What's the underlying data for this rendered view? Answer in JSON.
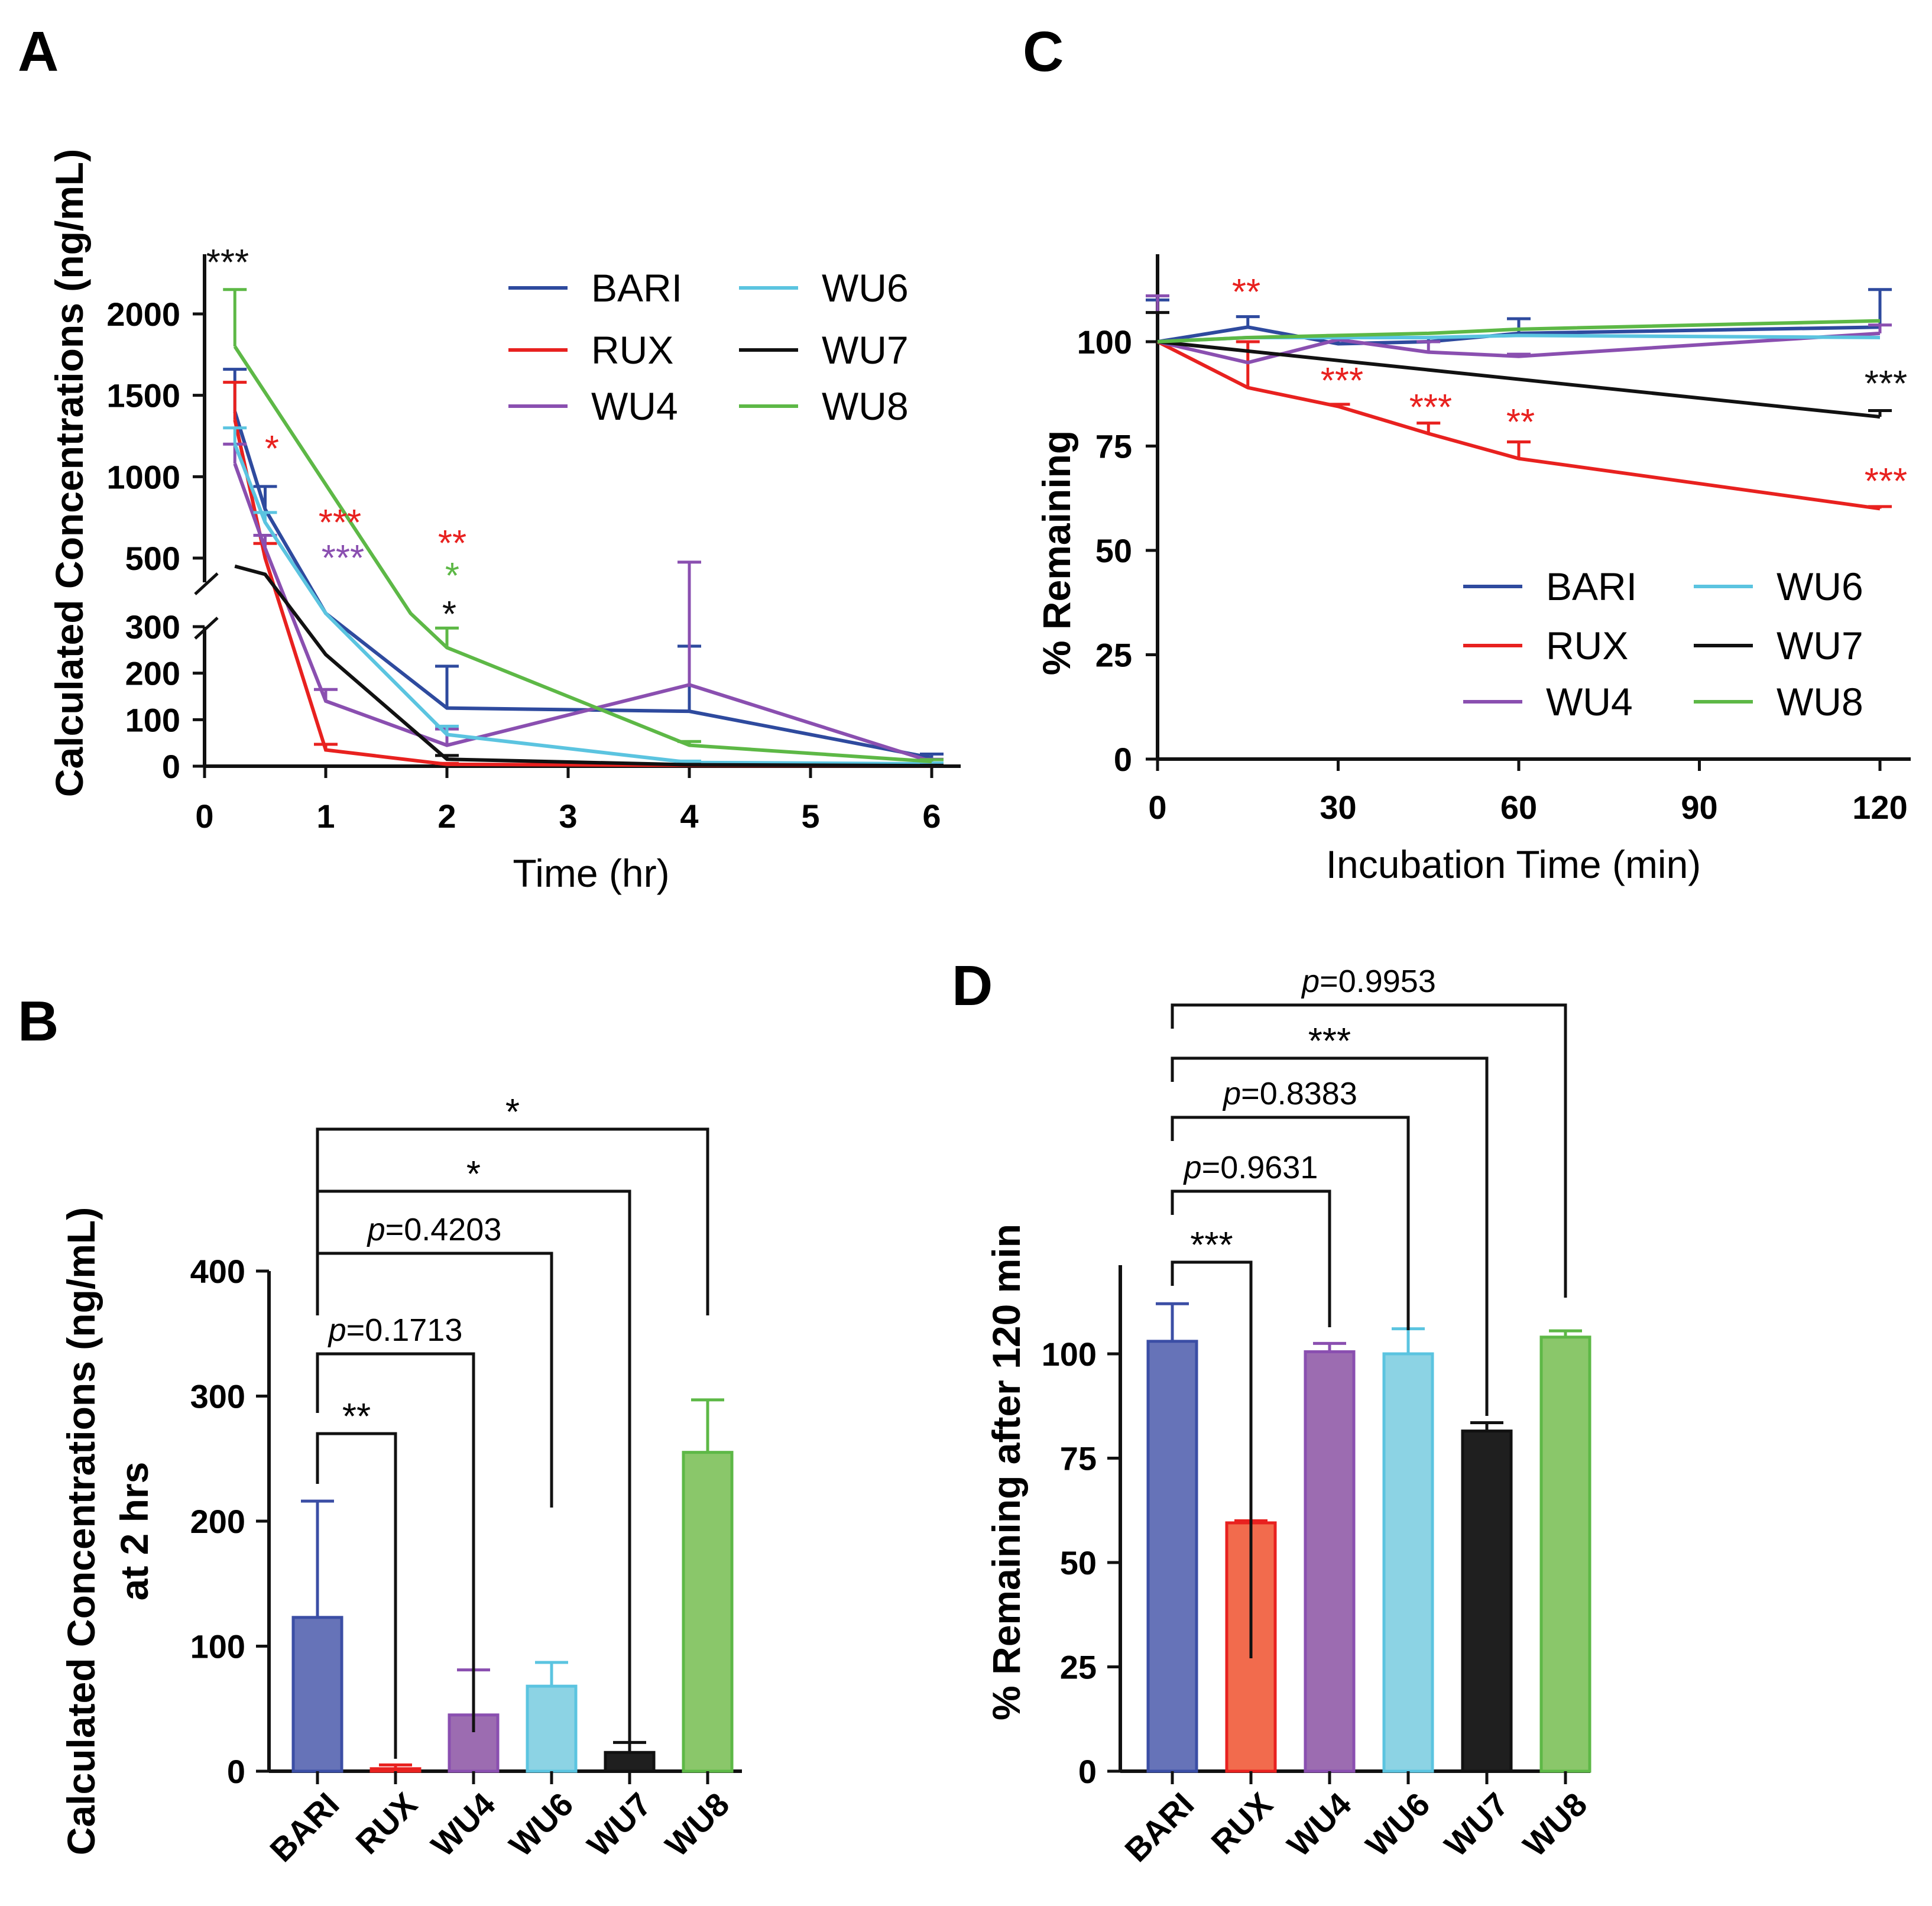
{
  "chart_data": [
    {
      "id": "A",
      "type": "line",
      "panel_label": "A",
      "xlabel": "Time (hr)",
      "ylabel": "Calculated Concentrations (ng/mL)",
      "xlim": [
        0,
        6.2
      ],
      "x_ticks": [
        "0",
        "1",
        "2",
        "3",
        "4",
        "5",
        "6"
      ],
      "y_axis_break": true,
      "ylim_lower": [
        0,
        300
      ],
      "ylim_upper": [
        400,
        2300
      ],
      "y_ticks_lower": [
        "0",
        "100",
        "200",
        "300"
      ],
      "y_ticks_upper": [
        "500",
        "1000",
        "1500",
        "2000"
      ],
      "series": [
        {
          "name": "BARI",
          "color": "#2e4a9e",
          "x": [
            0.25,
            0.5,
            1,
            2,
            4,
            6
          ],
          "y": [
            1400,
            800,
            330,
            125,
            118,
            18
          ],
          "err": [
            260,
            140,
            0,
            90,
            140,
            8
          ]
        },
        {
          "name": "RUX",
          "color": "#e8211f",
          "x": [
            0.25,
            0.5,
            1,
            2,
            4,
            6
          ],
          "y": [
            1350,
            500,
            35,
            4,
            2,
            1
          ],
          "err": [
            230,
            90,
            12,
            2,
            1,
            1
          ]
        },
        {
          "name": "WU4",
          "color": "#8a4fb0",
          "x": [
            0.25,
            0.5,
            1,
            2,
            4,
            6
          ],
          "y": [
            1080,
            560,
            140,
            45,
            175,
            10
          ],
          "err": [
            120,
            80,
            25,
            35,
            300,
            5
          ]
        },
        {
          "name": "WU6",
          "color": "#5bc4e0",
          "x": [
            0.25,
            0.5,
            1,
            2,
            4,
            6
          ],
          "y": [
            1200,
            720,
            330,
            68,
            8,
            5
          ],
          "err": [
            100,
            60,
            0,
            18,
            3,
            2
          ]
        },
        {
          "name": "WU7",
          "color": "#111111",
          "x": [
            0.25,
            0.5,
            1,
            2,
            4,
            6
          ],
          "y": [
            450,
            400,
            240,
            15,
            3,
            1
          ],
          "err": [
            0,
            0,
            0,
            8,
            1,
            1
          ]
        },
        {
          "name": "WU8",
          "color": "#5db846",
          "x": [
            0.25,
            1.7,
            2,
            4,
            6
          ],
          "y": [
            1800,
            330,
            255,
            45,
            10
          ],
          "err": [
            350,
            0,
            42,
            8,
            4
          ]
        }
      ],
      "legend": [
        "BARI",
        "WU6",
        "RUX",
        "WU7",
        "WU4",
        "WU8"
      ],
      "annotations": [
        {
          "text": "***",
          "color": "#111111"
        },
        {
          "text": "*",
          "color": "#e8211f"
        },
        {
          "text": "***",
          "color": "#e8211f"
        },
        {
          "text": "***",
          "color": "#8a4fb0"
        },
        {
          "text": "**",
          "color": "#e8211f"
        },
        {
          "text": "*",
          "color": "#5db846"
        },
        {
          "text": "*",
          "color": "#111111"
        }
      ]
    },
    {
      "id": "B",
      "type": "bar",
      "panel_label": "B",
      "ylabel_line1": "Calculated Concentrations (ng/mL)",
      "ylabel_line2": "at 2 hrs",
      "categories": [
        "BARI",
        "RUX",
        "WU4",
        "WU6",
        "WU7",
        "WU8"
      ],
      "values": [
        123,
        2,
        45,
        68,
        15,
        255
      ],
      "err": [
        93,
        3,
        36,
        19,
        8,
        42
      ],
      "colors": [
        "#6673b8",
        "#f26b4d",
        "#9c6cb1",
        "#8cd3e4",
        "#1f1f1f",
        "#8ac76a"
      ],
      "edge_colors": [
        "#3b4ea5",
        "#e8211f",
        "#8a4fb0",
        "#5bc4e0",
        "#111111",
        "#5db846"
      ],
      "ylim": [
        0,
        400
      ],
      "y_ticks": [
        "0",
        "100",
        "200",
        "300",
        "400"
      ],
      "comparisons": [
        {
          "from": "BARI",
          "to": "RUX",
          "label": "**"
        },
        {
          "from": "BARI",
          "to": "WU4",
          "label": "p=0.1713"
        },
        {
          "from": "BARI",
          "to": "WU6",
          "label": "p=0.4203"
        },
        {
          "from": "BARI",
          "to": "WU7",
          "label": "*"
        },
        {
          "from": "BARI",
          "to": "WU8",
          "label": "*"
        }
      ]
    },
    {
      "id": "C",
      "type": "line",
      "panel_label": "C",
      "xlabel": "Incubation Time (min)",
      "ylabel": "% Remaining",
      "xlim": [
        0,
        125
      ],
      "ylim": [
        0,
        120
      ],
      "x_ticks": [
        "0",
        "30",
        "60",
        "90",
        "120"
      ],
      "y_ticks": [
        "0",
        "25",
        "50",
        "75",
        "100"
      ],
      "series": [
        {
          "name": "BARI",
          "color": "#2e4a9e",
          "x": [
            0,
            15,
            30,
            45,
            60,
            120
          ],
          "y": [
            100,
            103.5,
            99.5,
            100,
            102,
            103.5
          ],
          "err": [
            10,
            2.5,
            1.5,
            1,
            3.5,
            9
          ]
        },
        {
          "name": "RUX",
          "color": "#e8211f",
          "x": [
            0,
            15,
            30,
            45,
            60,
            120
          ],
          "y": [
            100,
            89,
            84.5,
            78,
            72,
            60
          ],
          "err": [
            0,
            11,
            0.5,
            2.5,
            4,
            0.5
          ]
        },
        {
          "name": "WU4",
          "color": "#8a4fb0",
          "x": [
            0,
            15,
            30,
            45,
            60,
            120
          ],
          "y": [
            100,
            95,
            100.5,
            97.5,
            96.5,
            102
          ],
          "err": [
            11,
            0,
            1,
            2.5,
            0.5,
            2
          ]
        },
        {
          "name": "WU6",
          "color": "#5bc4e0",
          "x": [
            0,
            15,
            30,
            45,
            60,
            120
          ],
          "y": [
            100,
            101,
            101,
            101,
            101.5,
            101
          ],
          "err": [
            0,
            0,
            0,
            0,
            0,
            0
          ]
        },
        {
          "name": "WU7",
          "color": "#111111",
          "x": [
            0,
            120
          ],
          "y": [
            100,
            82
          ],
          "err": [
            7,
            1.5
          ]
        },
        {
          "name": "WU8",
          "color": "#5db846",
          "x": [
            0,
            15,
            30,
            45,
            60,
            120
          ],
          "y": [
            100,
            101,
            101.5,
            102,
            103,
            105
          ],
          "err": [
            0,
            0,
            0,
            0,
            0,
            0
          ]
        }
      ],
      "legend": [
        "BARI",
        "WU6",
        "RUX",
        "WU7",
        "WU4",
        "WU8"
      ],
      "annotations": [
        {
          "text": "**",
          "color": "#e8211f"
        },
        {
          "text": "***",
          "color": "#e8211f"
        },
        {
          "text": "***",
          "color": "#e8211f"
        },
        {
          "text": "**",
          "color": "#e8211f"
        },
        {
          "text": "***",
          "color": "#111111"
        },
        {
          "text": "***",
          "color": "#e8211f"
        }
      ]
    },
    {
      "id": "D",
      "type": "bar",
      "panel_label": "D",
      "ylabel": "% Remaining after 120 min",
      "categories": [
        "BARI",
        "RUX",
        "WU4",
        "WU6",
        "WU7",
        "WU8"
      ],
      "values": [
        103,
        59.5,
        100.5,
        100,
        81.5,
        104
      ],
      "err": [
        9,
        0.5,
        2,
        6,
        2,
        1.5
      ],
      "colors": [
        "#6673b8",
        "#f26b4d",
        "#9c6cb1",
        "#8cd3e4",
        "#1f1f1f",
        "#8ac76a"
      ],
      "edge_colors": [
        "#3b4ea5",
        "#e8211f",
        "#8a4fb0",
        "#5bc4e0",
        "#111111",
        "#5db846"
      ],
      "ylim": [
        0,
        120
      ],
      "y_ticks": [
        "0",
        "25",
        "50",
        "75",
        "100"
      ],
      "comparisons": [
        {
          "from": "BARI",
          "to": "RUX",
          "label": "***"
        },
        {
          "from": "BARI",
          "to": "WU4",
          "label": "p=0.9631"
        },
        {
          "from": "BARI",
          "to": "WU6",
          "label": "p=0.8383"
        },
        {
          "from": "BARI",
          "to": "WU7",
          "label": "***"
        },
        {
          "from": "BARI",
          "to": "WU8",
          "label": "p=0.9953"
        }
      ]
    }
  ]
}
